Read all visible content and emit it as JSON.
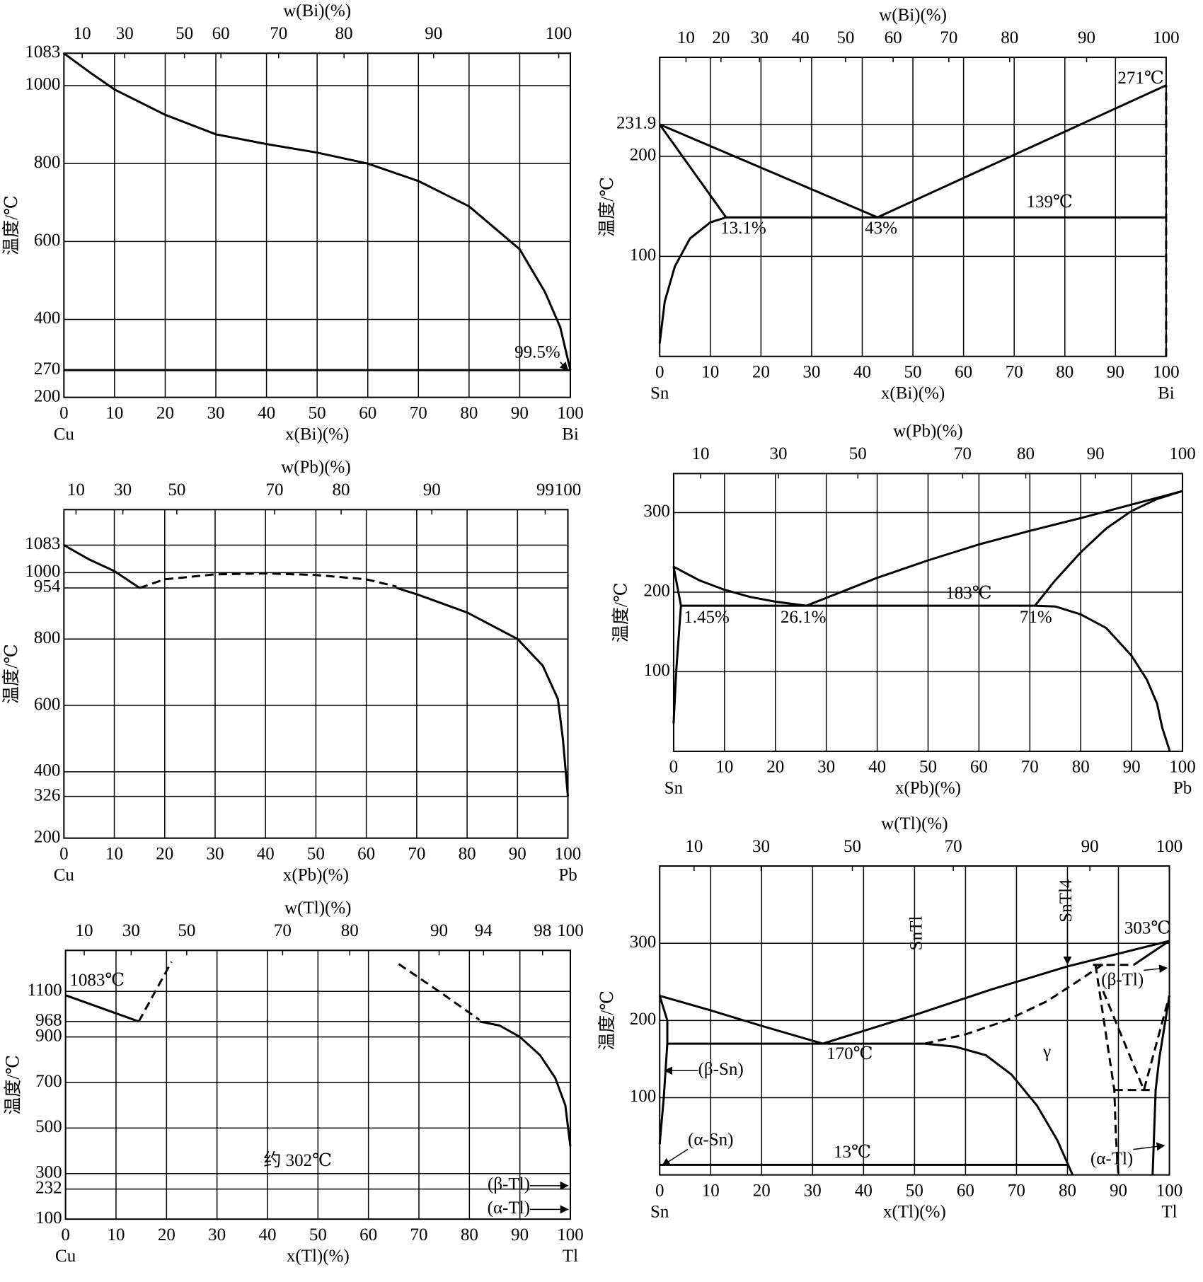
{
  "chart_data": [
    {
      "type": "line",
      "x2label": "w(Bi)(%)",
      "xlabel": "x(Bi)(%)",
      "ylabel": "温度/℃",
      "left_element": "Cu",
      "right_element": "Bi",
      "xlim": [
        0,
        100
      ],
      "ylim": [
        200,
        1083
      ],
      "grid": true,
      "color": "#000000",
      "xticks": [
        0,
        10,
        20,
        30,
        40,
        50,
        60,
        70,
        80,
        90,
        100
      ],
      "yticks": [
        200,
        270,
        400,
        600,
        800,
        1000,
        1083
      ],
      "x2ticks": [
        {
          "value": 3.6,
          "label": "10"
        },
        {
          "value": 12,
          "label": "30"
        },
        {
          "value": 23.8,
          "label": "50"
        },
        {
          "value": 31,
          "label": "60"
        },
        {
          "value": 42.4,
          "label": "70"
        },
        {
          "value": 55.3,
          "label": "80"
        },
        {
          "value": 73,
          "label": "90"
        },
        {
          "value": 97.7,
          "label": "100"
        }
      ],
      "lines": [
        {
          "x": [
            0,
            5,
            10,
            20,
            30,
            40,
            50,
            60,
            70,
            80,
            90,
            95,
            98,
            100
          ],
          "values": [
            1083,
            1035,
            990,
            925,
            875,
            850,
            828,
            800,
            755,
            690,
            580,
            470,
            380,
            270
          ]
        },
        {
          "x": [
            0,
            100
          ],
          "values": [
            270,
            270
          ]
        }
      ],
      "annotations": [
        {
          "text": "99.5%",
          "x": 98,
          "y": 312,
          "anchor": "end",
          "arrow_to": [
            99.5,
            270
          ]
        }
      ]
    },
    {
      "type": "line",
      "x2label": "w(Bi)(%)",
      "xlabel": "x(Bi)(%)",
      "ylabel": "温度/℃",
      "left_element": "Sn",
      "right_element": "Bi",
      "xlim": [
        0,
        100
      ],
      "ylim": [
        0,
        299
      ],
      "grid": true,
      "color": "#000000",
      "xticks": [
        0,
        10,
        20,
        30,
        40,
        50,
        60,
        70,
        80,
        90,
        100
      ],
      "yticks": [
        100,
        200,
        231.9
      ],
      "x2ticks": [
        {
          "value": 5.2,
          "label": "10"
        },
        {
          "value": 12.1,
          "label": "20"
        },
        {
          "value": 19.7,
          "label": "30"
        },
        {
          "value": 27.8,
          "label": "40"
        },
        {
          "value": 36.7,
          "label": "50"
        },
        {
          "value": 46.1,
          "label": "60"
        },
        {
          "value": 57.1,
          "label": "70"
        },
        {
          "value": 69.1,
          "label": "80"
        },
        {
          "value": 84.3,
          "label": "90"
        },
        {
          "value": 100,
          "label": "100"
        }
      ],
      "lines": [
        {
          "x": [
            0,
            43,
            100
          ],
          "values": [
            231.9,
            139,
            271
          ]
        },
        {
          "x": [
            0,
            13.1
          ],
          "values": [
            231.9,
            139
          ]
        },
        {
          "x": [
            13.1,
            10,
            6,
            3,
            1,
            0
          ],
          "values": [
            139,
            134,
            118,
            90,
            55,
            13
          ]
        },
        {
          "x": [
            13.1,
            100
          ],
          "values": [
            139,
            139
          ]
        },
        {
          "x": [
            100,
            100
          ],
          "values": [
            0,
            271
          ],
          "dashed": true
        }
      ],
      "annotations": [
        {
          "text": "13.1%",
          "x": 12,
          "y": 127,
          "anchor": "start"
        },
        {
          "text": "43%",
          "x": 40.5,
          "y": 127,
          "anchor": "start"
        },
        {
          "text": "139℃",
          "x": 77,
          "y": 153
        },
        {
          "text": "271℃",
          "x": 95,
          "y": 277
        }
      ]
    },
    {
      "type": "line",
      "x2label": "w(Pb)(%)",
      "xlabel": "x(Pb)(%)",
      "ylabel": "温度/℃",
      "left_element": "Cu",
      "right_element": "Pb",
      "xlim": [
        0,
        100
      ],
      "ylim": [
        200,
        1190
      ],
      "grid": true,
      "color": "#000000",
      "xticks": [
        0,
        10,
        20,
        30,
        40,
        50,
        60,
        70,
        80,
        90,
        100
      ],
      "yticks": [
        200,
        326,
        400,
        600,
        800,
        954,
        1000,
        1083
      ],
      "x2ticks": [
        {
          "value": 2.4,
          "label": "10"
        },
        {
          "value": 11.7,
          "label": "30"
        },
        {
          "value": 22.4,
          "label": "50"
        },
        {
          "value": 41.8,
          "label": "70"
        },
        {
          "value": 55,
          "label": "80"
        },
        {
          "value": 73,
          "label": "90"
        },
        {
          "value": 95.5,
          "label": "99"
        },
        {
          "value": 100,
          "label": "100"
        }
      ],
      "lines": [
        {
          "x": [
            0,
            5,
            10,
            15
          ],
          "values": [
            1083,
            1040,
            1005,
            954
          ]
        },
        {
          "x": [
            15,
            20,
            30,
            40,
            50,
            60,
            66
          ],
          "values": [
            954,
            980,
            995,
            998,
            993,
            980,
            958
          ],
          "dashed": true
        },
        {
          "x": [
            66,
            70,
            80,
            90,
            95,
            98,
            99,
            100
          ],
          "values": [
            954,
            935,
            880,
            800,
            720,
            620,
            500,
            326
          ]
        }
      ],
      "annotations": []
    },
    {
      "type": "line",
      "x2label": "w(Pb)(%)",
      "xlabel": "x(Pb)(%)",
      "ylabel": "温度/℃",
      "left_element": "Sn",
      "right_element": "Pb",
      "xlim": [
        0,
        100
      ],
      "ylim": [
        0,
        349
      ],
      "grid": true,
      "color": "#000000",
      "xticks": [
        0,
        10,
        20,
        30,
        40,
        50,
        60,
        70,
        80,
        90,
        100
      ],
      "yticks": [
        100,
        200,
        300
      ],
      "x2ticks": [
        {
          "value": 5.3,
          "label": "10"
        },
        {
          "value": 20.6,
          "label": "30"
        },
        {
          "value": 36.2,
          "label": "50"
        },
        {
          "value": 56.8,
          "label": "70"
        },
        {
          "value": 69.2,
          "label": "80"
        },
        {
          "value": 82.9,
          "label": "90"
        },
        {
          "value": 100,
          "label": "100"
        }
      ],
      "lines": [
        {
          "x": [
            0,
            5,
            10,
            15,
            20,
            26.1
          ],
          "values": [
            232,
            215,
            203,
            194,
            188,
            183
          ]
        },
        {
          "x": [
            26.1,
            40,
            50,
            60,
            70,
            80,
            90,
            100
          ],
          "values": [
            183,
            218,
            240,
            260,
            277,
            293,
            310,
            327
          ]
        },
        {
          "x": [
            0,
            1.45
          ],
          "values": [
            232,
            183
          ]
        },
        {
          "x": [
            1.45,
            0.5,
            0
          ],
          "values": [
            183,
            100,
            35
          ]
        },
        {
          "x": [
            1.45,
            71
          ],
          "values": [
            183,
            183
          ]
        },
        {
          "x": [
            71,
            75,
            80,
            85,
            90,
            95,
            100
          ],
          "values": [
            183,
            215,
            250,
            280,
            302,
            317,
            327
          ]
        },
        {
          "x": [
            71,
            75,
            80,
            85,
            90,
            93,
            95,
            96,
            97.5
          ],
          "values": [
            183,
            182,
            172,
            155,
            120,
            90,
            60,
            30,
            0
          ]
        }
      ],
      "annotations": [
        {
          "text": "1.45%",
          "x": 2,
          "y": 167,
          "anchor": "start"
        },
        {
          "text": "26.1%",
          "x": 21,
          "y": 167,
          "anchor": "start"
        },
        {
          "text": "71%",
          "x": 68,
          "y": 167,
          "anchor": "start"
        },
        {
          "text": "183℃",
          "x": 58,
          "y": 197
        }
      ]
    },
    {
      "type": "line",
      "x2label": "w(Tl)(%)",
      "xlabel": "x(Tl)(%)",
      "ylabel": "温度/℃",
      "left_element": "Cu",
      "right_element": "Tl",
      "xlim": [
        0,
        100
      ],
      "ylim": [
        100,
        1280
      ],
      "grid": true,
      "color": "#000000",
      "xticks": [
        0,
        10,
        20,
        30,
        40,
        50,
        60,
        70,
        80,
        90,
        100
      ],
      "yticks": [
        100,
        232,
        300,
        500,
        700,
        900,
        968,
        1100
      ],
      "x2ticks": [
        {
          "value": 3.7,
          "label": "10"
        },
        {
          "value": 13,
          "label": "30"
        },
        {
          "value": 24,
          "label": "50"
        },
        {
          "value": 43,
          "label": "70"
        },
        {
          "value": 56.3,
          "label": "80"
        },
        {
          "value": 74,
          "label": "90"
        },
        {
          "value": 82.8,
          "label": "94"
        },
        {
          "value": 94.5,
          "label": "98"
        },
        {
          "value": 100,
          "label": "100"
        }
      ],
      "lines": [
        {
          "x": [
            0,
            14.5
          ],
          "values": [
            1083,
            968
          ]
        },
        {
          "x": [
            14.5,
            21
          ],
          "values": [
            968,
            1230
          ],
          "dashed": true
        },
        {
          "x": [
            66,
            74,
            82
          ],
          "values": [
            1220,
            1100,
            975
          ],
          "dashed": true
        },
        {
          "x": [
            82,
            86,
            90,
            94,
            97,
            99,
            100
          ],
          "values": [
            968,
            950,
            900,
            820,
            720,
            600,
            420
          ]
        }
      ],
      "annotations": [
        {
          "text": "1083℃",
          "x": 0.8,
          "y": 1143,
          "anchor": "start"
        },
        {
          "text": "约 302℃",
          "x": 46,
          "y": 352
        },
        {
          "text": "(β-Tl)",
          "x": 92,
          "y": 247,
          "anchor": "end",
          "arrow_to": [
            99.5,
            247
          ]
        },
        {
          "text": "(α-Tl)",
          "x": 92,
          "y": 143,
          "anchor": "end",
          "arrow_to": [
            99.5,
            143
          ]
        }
      ]
    },
    {
      "type": "line",
      "x2label": "w(Tl)(%)",
      "xlabel": "x(Tl)(%)",
      "ylabel": "温度/℃",
      "left_element": "Sn",
      "right_element": "Tl",
      "xlim": [
        0,
        100
      ],
      "ylim": [
        0,
        400
      ],
      "grid": true,
      "color": "#000000",
      "xticks": [
        0,
        10,
        20,
        30,
        40,
        50,
        60,
        70,
        80,
        90,
        100
      ],
      "yticks": [
        100,
        200,
        300
      ],
      "x2ticks": [
        {
          "value": 6.75,
          "label": "10"
        },
        {
          "value": 19.9,
          "label": "30"
        },
        {
          "value": 37.8,
          "label": "50"
        },
        {
          "value": 57.6,
          "label": "70"
        },
        {
          "value": 84.4,
          "label": "90"
        },
        {
          "value": 100,
          "label": "100"
        }
      ],
      "lines": [
        {
          "x": [
            0,
            10,
            20,
            32
          ],
          "values": [
            232,
            213,
            193,
            170
          ]
        },
        {
          "x": [
            32,
            50,
            65,
            80,
            100
          ],
          "values": [
            170,
            207,
            240,
            270,
            303
          ]
        },
        {
          "x": [
            1.5,
            52
          ],
          "values": [
            170,
            170
          ]
        },
        {
          "x": [
            52,
            58,
            64,
            69,
            74,
            78,
            81
          ],
          "values": [
            170,
            166,
            155,
            130,
            90,
            45,
            0
          ]
        },
        {
          "x": [
            0,
            80
          ],
          "values": [
            13,
            13
          ]
        },
        {
          "x": [
            52,
            60,
            68,
            76,
            83,
            87
          ],
          "values": [
            170,
            182,
            200,
            225,
            255,
            273
          ],
          "dashed": true
        },
        {
          "x": [
            85,
            93
          ],
          "values": [
            272,
            272
          ],
          "dashed": true
        },
        {
          "x": [
            93,
            100
          ],
          "values": [
            272,
            303
          ]
        },
        {
          "x": [
            85.5,
            89.2,
            89.5,
            90
          ],
          "values": [
            272,
            110,
            50,
            0
          ],
          "dashed": true
        },
        {
          "x": [
            87,
            95,
            100
          ],
          "values": [
            238,
            110,
            232
          ],
          "dashed": true
        },
        {
          "x": [
            89.2,
            97.3
          ],
          "values": [
            110,
            110
          ],
          "dashed": true
        },
        {
          "x": [
            100,
            98,
            97.3,
            96.7
          ],
          "values": [
            232,
            150,
            110,
            0
          ]
        },
        {
          "x": [
            0,
            1.5,
            1.5,
            0.8,
            0
          ],
          "values": [
            232,
            200,
            170,
            100,
            40
          ]
        }
      ],
      "annotations": [
        {
          "text": "303℃",
          "x": 95.7,
          "y": 318
        },
        {
          "text": "SnTl",
          "x": 50.6,
          "y": 313,
          "vertical": true
        },
        {
          "text": "SnTl4",
          "x": 80,
          "y": 355,
          "vertical": true,
          "arrow_to": [
            80,
            273
          ]
        },
        {
          "text": "(β-Tl)",
          "x": 90.8,
          "y": 251,
          "arrow_to": [
            99.5,
            268
          ]
        },
        {
          "text": "γ",
          "x": 76,
          "y": 158
        },
        {
          "text": "170℃",
          "x": 37.3,
          "y": 155
        },
        {
          "text": "(β-Sn)",
          "x": 12,
          "y": 135,
          "arrow_to": [
            1,
            135
          ]
        },
        {
          "text": "(α-Sn)",
          "x": 10,
          "y": 44,
          "arrow_to": [
            0.5,
            12
          ]
        },
        {
          "text": "13℃",
          "x": 37.8,
          "y": 28
        },
        {
          "text": "(α-Tl)",
          "x": 88.7,
          "y": 19,
          "arrow_to": [
            99,
            38
          ]
        }
      ]
    }
  ]
}
